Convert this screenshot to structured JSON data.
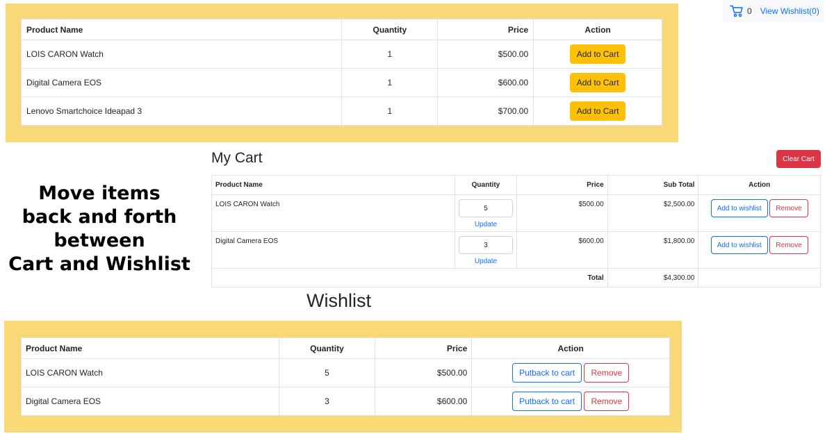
{
  "topnav": {
    "cart_count": "0",
    "view_wishlist": "View Wishlist(0)"
  },
  "products": {
    "headers": {
      "name": "Product Name",
      "quantity": "Quantity",
      "price": "Price",
      "action": "Action"
    },
    "rows": [
      {
        "name": "LOIS CARON Watch",
        "quantity": "1",
        "price": "$500.00",
        "action": "Add to Cart"
      },
      {
        "name": "Digital Camera EOS",
        "quantity": "1",
        "price": "$600.00",
        "action": "Add to Cart"
      },
      {
        "name": "Lenovo Smartchoice Ideapad 3",
        "quantity": "1",
        "price": "$700.00",
        "action": "Add to Cart"
      }
    ]
  },
  "caption": {
    "lines": [
      "Move items",
      "back and forth",
      "between",
      "Cart and Wishlist"
    ]
  },
  "cart": {
    "title": "My Cart",
    "clear_label": "Clear Cart",
    "headers": {
      "name": "Product Name",
      "quantity": "Quantity",
      "price": "Price",
      "subtotal": "Sub Total",
      "action": "Action"
    },
    "rows": [
      {
        "name": "LOIS CARON Watch",
        "quantity": "5",
        "update": "Update",
        "price": "$500.00",
        "subtotal": "$2,500.00",
        "wishlist": "Add to wishlist",
        "remove": "Remove"
      },
      {
        "name": "Digital Camera EOS",
        "quantity": "3",
        "update": "Update",
        "price": "$600.00",
        "subtotal": "$1,800.00",
        "wishlist": "Add to wishlist",
        "remove": "Remove"
      }
    ],
    "total_label": "Total",
    "total_value": "$4,300.00"
  },
  "wishlist": {
    "title": "Wishlist",
    "headers": {
      "name": "Product Name",
      "quantity": "Quantity",
      "price": "Price",
      "action": "Action"
    },
    "rows": [
      {
        "name": "LOIS CARON Watch",
        "quantity": "5",
        "price": "$500.00",
        "putback": "Putback to cart",
        "remove": "Remove"
      },
      {
        "name": "Digital Camera EOS",
        "quantity": "3",
        "price": "$600.00",
        "putback": "Putback to cart",
        "remove": "Remove"
      }
    ]
  },
  "colors": {
    "panel_yellow": "#f8d877",
    "add_to_cart_button": "#ffc107",
    "primary_blue": "#0d6efd",
    "danger_red": "#dc3545"
  },
  "icons": {
    "cart": "shopping-cart-icon"
  }
}
